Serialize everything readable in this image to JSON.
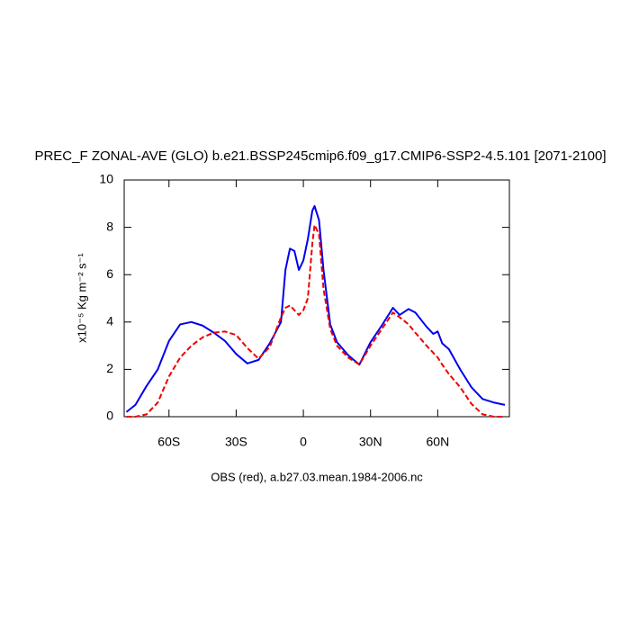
{
  "chart_data": {
    "type": "line",
    "title": "PREC_F ZONAL-AVE (GLO) b.e21.BSSP245cmip6.f09_g17.CMIP6-SSP2-4.5.101 [2071-2100]",
    "ylabel": "x10⁻⁵ Kg m⁻² s⁻¹",
    "xlabel": "OBS (red), a.b27.03.mean.1984-2006.nc",
    "x": [
      -79,
      -75,
      -70,
      -65,
      -60,
      -55,
      -50,
      -45,
      -40,
      -35,
      -30,
      -25,
      -20,
      -15,
      -10,
      -8,
      -6,
      -4,
      -2,
      0,
      2,
      4,
      5,
      7,
      9,
      12,
      15,
      20,
      25,
      30,
      35,
      40,
      43,
      47,
      50,
      55,
      58,
      60,
      62,
      65,
      70,
      75,
      80,
      85,
      90
    ],
    "series": [
      {
        "color": "#0000ee",
        "dash": "solid",
        "values": [
          0.2,
          0.5,
          1.3,
          2.0,
          3.2,
          3.9,
          4.0,
          3.85,
          3.55,
          3.2,
          2.65,
          2.25,
          2.4,
          3.1,
          4.0,
          6.2,
          7.1,
          7.0,
          6.2,
          6.6,
          7.5,
          8.7,
          8.9,
          8.3,
          6.2,
          3.9,
          3.15,
          2.6,
          2.2,
          3.15,
          3.85,
          4.6,
          4.3,
          4.55,
          4.4,
          3.8,
          3.5,
          3.6,
          3.1,
          2.85,
          2.0,
          1.25,
          0.75,
          0.6,
          0.5
        ]
      },
      {
        "color": "#ee0000",
        "dash": "dashed",
        "values": [
          0,
          0,
          0.1,
          0.6,
          1.7,
          2.5,
          3.0,
          3.35,
          3.55,
          3.6,
          3.45,
          2.9,
          2.45,
          2.95,
          4.2,
          4.6,
          4.7,
          4.5,
          4.3,
          4.5,
          5.0,
          7.3,
          8.1,
          7.7,
          5.4,
          3.7,
          3.0,
          2.5,
          2.2,
          3.0,
          3.7,
          4.4,
          4.2,
          3.9,
          3.55,
          3.0,
          2.7,
          2.5,
          2.2,
          1.8,
          1.25,
          0.55,
          0.1,
          0,
          0
        ]
      }
    ],
    "xlim": [
      -80,
      92
    ],
    "xticks": [
      {
        "value": -60,
        "label": "60S"
      },
      {
        "value": -30,
        "label": "30S"
      },
      0,
      {
        "value": 30,
        "label": "30N"
      },
      {
        "value": 60,
        "label": "60N"
      }
    ],
    "ylim": [
      0,
      10
    ],
    "yticks": [
      0,
      2,
      4,
      6,
      8,
      10
    ]
  }
}
